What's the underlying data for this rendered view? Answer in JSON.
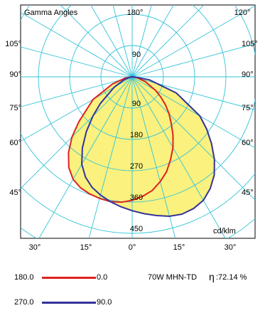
{
  "chart_data": {
    "type": "polar-photometric",
    "title": "Gamma Angles",
    "unit": "cd/klm",
    "product": "70W MHN-TD",
    "efficiency_symbol": "η",
    "efficiency": ":72.14 %",
    "radial_ticks": [
      {
        "value": 90,
        "label": "90"
      },
      {
        "value": 180,
        "label": "180"
      },
      {
        "value": 270,
        "label": "270"
      },
      {
        "value": 360,
        "label": "360"
      },
      {
        "value": 450,
        "label": "450"
      }
    ],
    "radial_max": 450,
    "angle_labels_top": [
      {
        "angle": 180,
        "label": "180°"
      },
      {
        "angle": 120,
        "label": "120°"
      }
    ],
    "angle_labels_side": [
      {
        "angle": 105,
        "label": "105°"
      },
      {
        "angle": 90,
        "label": "90°"
      },
      {
        "angle": 75,
        "label": "75°"
      },
      {
        "angle": 60,
        "label": "60°"
      },
      {
        "angle": 45,
        "label": "45°"
      }
    ],
    "angle_labels_bottom": [
      {
        "angle": -30,
        "label": "30°"
      },
      {
        "angle": -15,
        "label": "15°"
      },
      {
        "angle": 0,
        "label": "0°"
      },
      {
        "angle": 15,
        "label": "15°"
      },
      {
        "angle": 30,
        "label": "30°"
      }
    ],
    "series": [
      {
        "name": "180.0 — 0.0",
        "legend_left": "180.0",
        "legend_right": "0.0",
        "color": "#dd2222",
        "fill": "#faf17e",
        "points": [
          [
            -90,
            0
          ],
          [
            -80,
            20
          ],
          [
            -70,
            60
          ],
          [
            -60,
            130
          ],
          [
            -50,
            200
          ],
          [
            -45,
            245
          ],
          [
            -40,
            285
          ],
          [
            -35,
            318
          ],
          [
            -30,
            340
          ],
          [
            -25,
            352
          ],
          [
            -20,
            358
          ],
          [
            -15,
            362
          ],
          [
            -10,
            364
          ],
          [
            -5,
            362
          ],
          [
            0,
            355
          ],
          [
            5,
            345
          ],
          [
            10,
            332
          ],
          [
            15,
            312
          ],
          [
            20,
            290
          ],
          [
            25,
            262
          ],
          [
            30,
            235
          ],
          [
            35,
            205
          ],
          [
            40,
            175
          ],
          [
            45,
            150
          ],
          [
            50,
            125
          ],
          [
            55,
            100
          ],
          [
            60,
            78
          ],
          [
            70,
            40
          ],
          [
            80,
            15
          ],
          [
            90,
            0
          ]
        ]
      },
      {
        "name": "270.0 — 90.0",
        "legend_left": "270.0",
        "legend_right": "90.0",
        "color": "#333399",
        "fill": "#faf17e",
        "points": [
          [
            -90,
            0
          ],
          [
            -80,
            8
          ],
          [
            -70,
            25
          ],
          [
            -60,
            60
          ],
          [
            -50,
            120
          ],
          [
            -45,
            160
          ],
          [
            -40,
            205
          ],
          [
            -35,
            250
          ],
          [
            -30,
            290
          ],
          [
            -25,
            318
          ],
          [
            -20,
            338
          ],
          [
            -15,
            352
          ],
          [
            -10,
            364
          ],
          [
            -5,
            375
          ],
          [
            0,
            385
          ],
          [
            5,
            395
          ],
          [
            10,
            405
          ],
          [
            15,
            415
          ],
          [
            20,
            420
          ],
          [
            25,
            418
          ],
          [
            30,
            410
          ],
          [
            35,
            392
          ],
          [
            40,
            368
          ],
          [
            45,
            335
          ],
          [
            50,
            298
          ],
          [
            55,
            262
          ],
          [
            60,
            225
          ],
          [
            70,
            135
          ],
          [
            80,
            50
          ],
          [
            90,
            5
          ]
        ]
      }
    ]
  }
}
